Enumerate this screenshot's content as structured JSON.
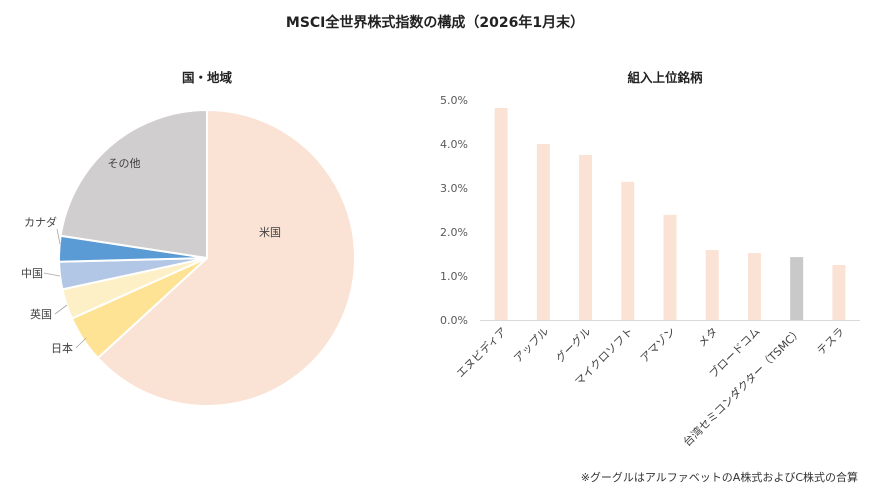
{
  "title": "MSCI全世界株式指数の構成（2026年1月末）",
  "footnote": "※グーグルはアルファベットのA株式およびC株式の合算",
  "chart_data": [
    {
      "type": "pie",
      "title": "国・地域",
      "start_angle": "12 o'clock, clockwise",
      "slices": [
        {
          "label": "米国",
          "value": 63.2,
          "color": "#FAE3D4"
        },
        {
          "label": "日本",
          "value": 5.1,
          "color": "#FDE393"
        },
        {
          "label": "英国",
          "value": 3.3,
          "color": "#FEF0C6"
        },
        {
          "label": "中国",
          "value": 3.0,
          "color": "#B2C7E6"
        },
        {
          "label": "カナダ",
          "value": 2.8,
          "color": "#5B9BD5"
        },
        {
          "label": "その他",
          "value": 22.6,
          "color": "#D0CECE"
        }
      ]
    },
    {
      "type": "bar",
      "title": "組入上位銘柄",
      "xlabel": "",
      "ylabel": "",
      "ylim": [
        0,
        5.0
      ],
      "yticks": [
        "0.0%",
        "1.0%",
        "2.0%",
        "3.0%",
        "4.0%",
        "5.0%"
      ],
      "grid": false,
      "categories": [
        "エヌビディア",
        "アップル",
        "グーグル",
        "マイクロソフト",
        "アマゾン",
        "メタ",
        "ブロードコム",
        "台湾セミコンダクター（TSMC）",
        "テスラ"
      ],
      "values": [
        4.82,
        4.0,
        3.75,
        3.14,
        2.39,
        1.59,
        1.52,
        1.43,
        1.25
      ],
      "colors": [
        "#FAE3D4",
        "#FAE3D4",
        "#FAE3D4",
        "#FAE3D4",
        "#FAE3D4",
        "#FAE3D4",
        "#FAE3D4",
        "#C9C9C9",
        "#FAE3D4"
      ],
      "unit": "%"
    }
  ]
}
